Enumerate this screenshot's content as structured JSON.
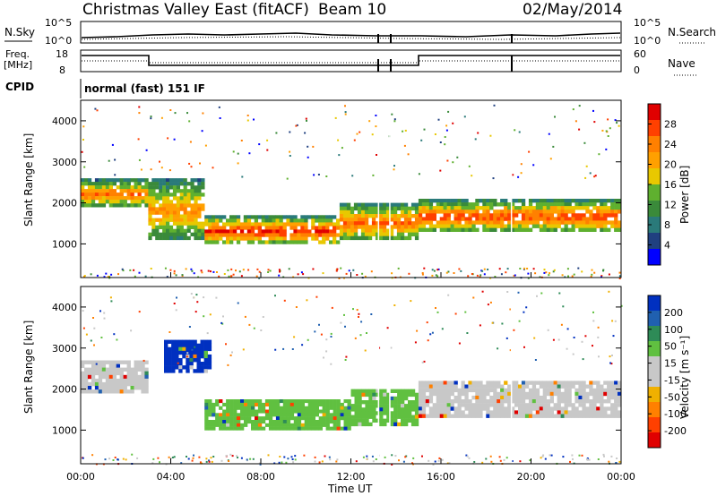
{
  "header": {
    "station": "Christmas Valley East (fitACF)",
    "beam": "Beam 10",
    "date": "02/May/2014"
  },
  "top_panels": {
    "nsky_label": "N.Sky",
    "nsearch_label": "N.Search",
    "noise_ticks": [
      "10^5",
      "10^0"
    ],
    "freq_label": "Freq.",
    "freq_unit": "[MHz]",
    "freq_ticks": [
      "18",
      "8"
    ],
    "nave_label": "Nave",
    "nave_ticks": [
      "60",
      "0"
    ],
    "cpid_label": "CPID",
    "cpid_text": "normal (fast) 151 IF"
  },
  "chart_data": [
    {
      "type": "heatmap",
      "quantity": "Power",
      "ylabel": "Slant Range [km]",
      "xlabel": "Time UT",
      "xlim": [
        "00:00",
        "24:00"
      ],
      "ylim": [
        180,
        4500
      ],
      "yticks": [
        1000,
        2000,
        3000,
        4000
      ],
      "colorbar_label": "Power [dB]",
      "colorbar_ticks": [
        "28",
        "24",
        "20",
        "16",
        "12",
        "8",
        "4"
      ],
      "colorbar_colors": [
        "#e00000",
        "#ff4000",
        "#ff8000",
        "#ffa000",
        "#e8c800",
        "#5fb02f",
        "#3a8a3a",
        "#2a7a7a",
        "#204080",
        "#0000ff"
      ],
      "features": [
        {
          "t0": 0.0,
          "t1": 3.0,
          "r0": 1900,
          "r1": 2600,
          "level": 0.8
        },
        {
          "t0": 3.0,
          "t1": 5.5,
          "r0": 1100,
          "r1": 2600,
          "level": 0.75
        },
        {
          "t0": 5.5,
          "t1": 11.5,
          "r0": 1000,
          "r1": 1700,
          "level": 0.95
        },
        {
          "t0": 11.5,
          "t1": 15.0,
          "r0": 1100,
          "r1": 2000,
          "level": 0.85
        },
        {
          "t0": 15.0,
          "t1": 24.0,
          "r0": 1300,
          "r1": 2100,
          "level": 0.9
        }
      ]
    },
    {
      "type": "heatmap",
      "quantity": "Velocity",
      "ylabel": "Slant Range [km]",
      "xlabel": "Time UT",
      "xlim": [
        "00:00",
        "24:00"
      ],
      "ylim": [
        180,
        4500
      ],
      "yticks": [
        1000,
        2000,
        3000,
        4000
      ],
      "colorbar_label": "Velocity [m s⁻¹]",
      "colorbar_ticks": [
        "200",
        "100",
        "50",
        "15",
        "-15",
        "-50",
        "-100",
        "-200"
      ],
      "colorbar_colors": [
        "#0030c0",
        "#2060b0",
        "#2e8b57",
        "#60c040",
        "#c8c8c8",
        "#c8c8c8",
        "#f0b000",
        "#ff8000",
        "#ff4000",
        "#e00000"
      ],
      "features": [
        {
          "t0": 0.0,
          "t1": 3.0,
          "r0": 1900,
          "r1": 2700,
          "color": "#c8c8c8"
        },
        {
          "t0": 3.7,
          "t1": 5.8,
          "r0": 2400,
          "r1": 3200,
          "color": "#0030c0"
        },
        {
          "t0": 5.5,
          "t1": 12.0,
          "r0": 1000,
          "r1": 1750,
          "color": "#60c040"
        },
        {
          "t0": 12.0,
          "t1": 15.0,
          "r0": 1100,
          "r1": 2000,
          "color": "#60c040"
        },
        {
          "t0": 15.0,
          "t1": 24.0,
          "r0": 1300,
          "r1": 2200,
          "color": "#c8c8c8"
        }
      ]
    }
  ],
  "x_axis": {
    "ticks": [
      "00:00",
      "04:00",
      "08:00",
      "12:00",
      "16:00",
      "20:00",
      "00:00"
    ],
    "label": "Time UT"
  }
}
